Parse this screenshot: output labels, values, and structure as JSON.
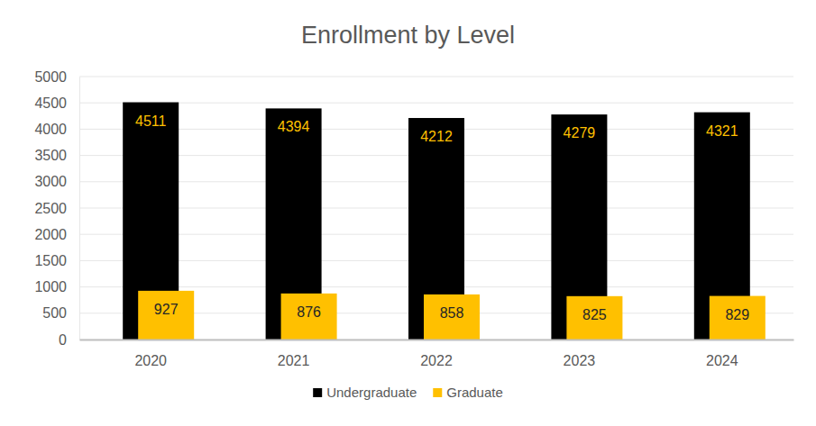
{
  "chart_data": {
    "type": "bar",
    "title": "Enrollment by Level",
    "categories": [
      "2020",
      "2021",
      "2022",
      "2023",
      "2024"
    ],
    "series": [
      {
        "name": "Undergraduate",
        "color": "#000000",
        "values": [
          4511,
          4394,
          4212,
          4279,
          4321
        ]
      },
      {
        "name": "Graduate",
        "color": "#ffc000",
        "values": [
          927,
          876,
          858,
          825,
          829
        ]
      }
    ],
    "ylim": [
      0,
      5000
    ],
    "yticks": [
      0,
      500,
      1000,
      1500,
      2000,
      2500,
      3000,
      3500,
      4000,
      4500,
      5000
    ],
    "grid": true,
    "data_labels": true,
    "legend": "bottom"
  }
}
